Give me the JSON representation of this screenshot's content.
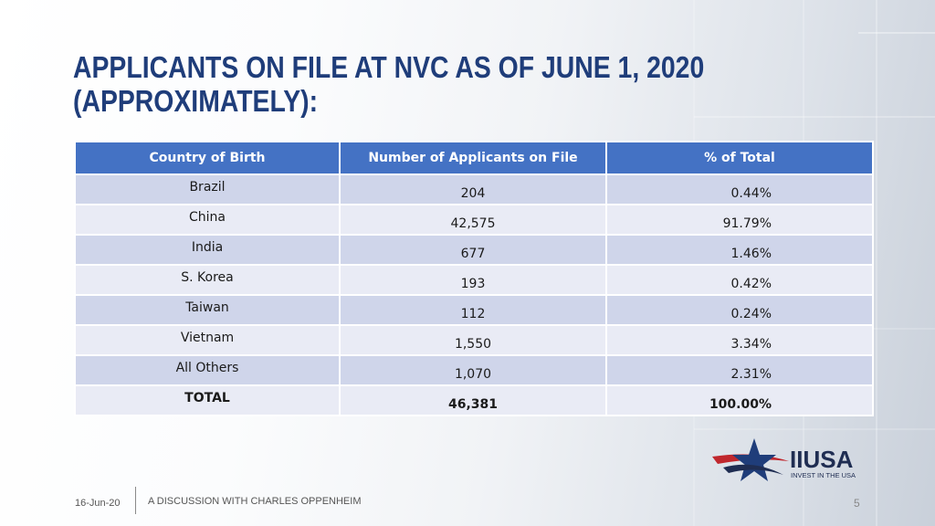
{
  "slide": {
    "title_line1": "APPLICANTS ON FILE AT NVC AS OF JUNE 1, 2020",
    "title_line2": "(APPROXIMATELY):"
  },
  "table": {
    "headers": [
      "Country of Birth",
      "Number of Applicants on File",
      "% of Total"
    ],
    "rows": [
      [
        "Brazil",
        "204",
        "0.44%"
      ],
      [
        "China",
        "42,575",
        "91.79%"
      ],
      [
        "India",
        "677",
        "1.46%"
      ],
      [
        "S. Korea",
        "193",
        "0.42%"
      ],
      [
        "Taiwan",
        "112",
        "0.24%"
      ],
      [
        "Vietnam",
        "1,550",
        "3.34%"
      ],
      [
        "All Others",
        "1,070",
        "2.31%"
      ]
    ],
    "total": [
      "TOTAL",
      "46,381",
      "100.00%"
    ]
  },
  "logo": {
    "name": "IIUSA",
    "tagline": "INVEST IN THE USA",
    "colors": {
      "navy": "#1f2d52",
      "red": "#c0272d",
      "blue": "#1f3d7a"
    }
  },
  "footer": {
    "date": "16-Jun-20",
    "text": "A DISCUSSION WITH CHARLES OPPENHEIM",
    "page": "5"
  },
  "colors": {
    "title": "#1f3d7a",
    "header_bg": "#4472c4",
    "row_odd": "#cfd5ea",
    "row_even": "#e9ebf5"
  }
}
